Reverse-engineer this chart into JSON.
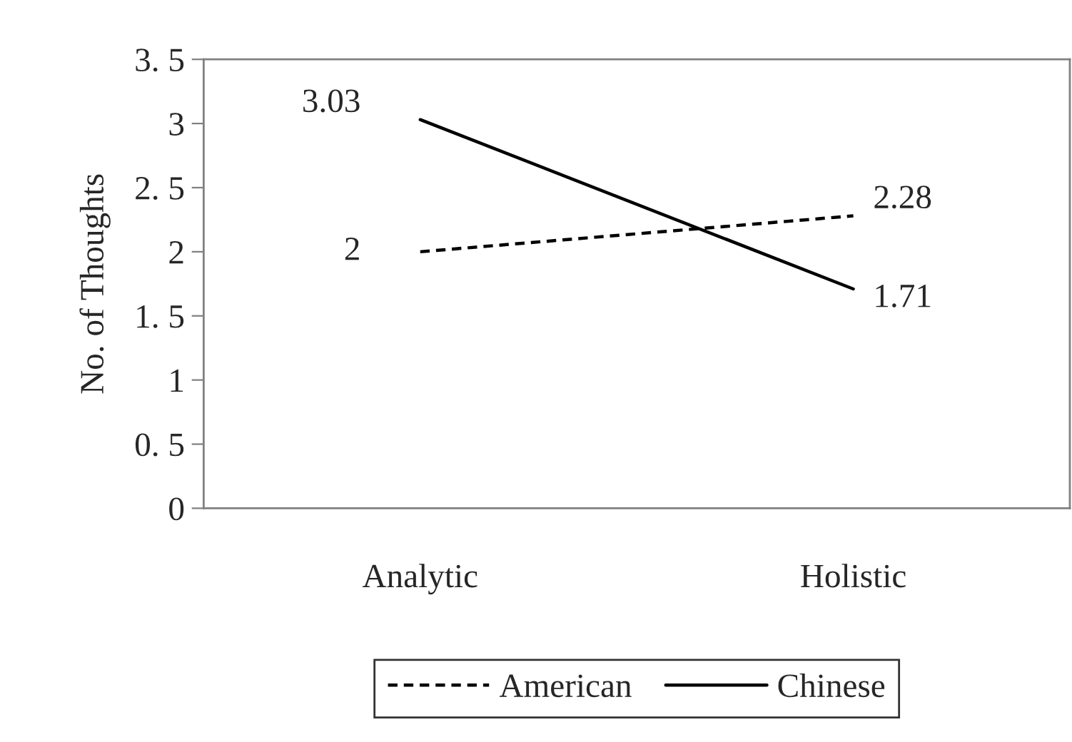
{
  "chart_data": {
    "type": "line",
    "ylabel": "No. of Thoughts",
    "categories": [
      "Analytic",
      "Holistic"
    ],
    "series": [
      {
        "name": "American",
        "color": "#000000",
        "values": [
          2,
          2.28
        ],
        "line_style": "dashed"
      },
      {
        "name": "Chinese",
        "color": "#000000",
        "values": [
          3.03,
          1.71
        ],
        "line_style": "solid"
      }
    ],
    "ylim": [
      0,
      3.5
    ],
    "yticks": [
      0,
      {
        "value": 0.5,
        "label": "0. 5"
      },
      1,
      {
        "value": 1.5,
        "label": "1. 5"
      },
      2,
      {
        "value": 2.5,
        "label": "2. 5"
      },
      3,
      {
        "value": 3.5,
        "label": "3. 5"
      }
    ],
    "data_labels": true,
    "grid": false,
    "legend": "bottom",
    "marker": "none"
  }
}
